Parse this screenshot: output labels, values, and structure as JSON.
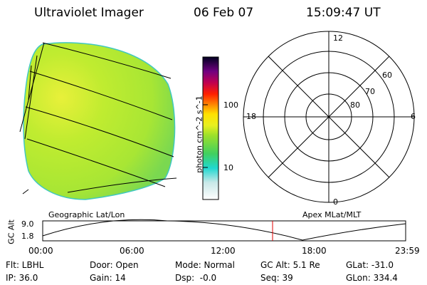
{
  "header": {
    "title": "Ultraviolet Imager",
    "date": "06 Feb 07",
    "time": "15:09:47 UT"
  },
  "colorbar": {
    "label": "photon cm^-2 s^-1",
    "ticks": [
      "100",
      "10"
    ]
  },
  "polar_plot": {
    "mlt_labels": [
      "12",
      "6",
      "18",
      "0"
    ],
    "lat_labels": [
      "60",
      "70",
      "80"
    ],
    "caption": "Apex MLat/MLT"
  },
  "geo_caption": "Geographic Lat/Lon",
  "altitude_plot": {
    "ylabel": "GC Alt",
    "yticks": [
      "9.0",
      "1.8"
    ],
    "xticks": [
      "00:00",
      "06:00",
      "12:00",
      "18:00",
      "23:59"
    ]
  },
  "info": {
    "filter_label": "Flt: LBHL",
    "ip_label": "IP: 36.0",
    "door_label": "Door: Open",
    "gain_label": "Gain: 14",
    "mode_label": "Mode: Normal",
    "dsp_label": "Dsp:  -0.0",
    "gcalt_label": "GC Alt: 5.1 Re",
    "seq_label": "Seq: 39",
    "glat_label": "GLat: -31.0",
    "glon_label": "GLon: 334.4"
  },
  "colors": {
    "image_fill": "#b8ec2e",
    "marker": "#e00000"
  }
}
